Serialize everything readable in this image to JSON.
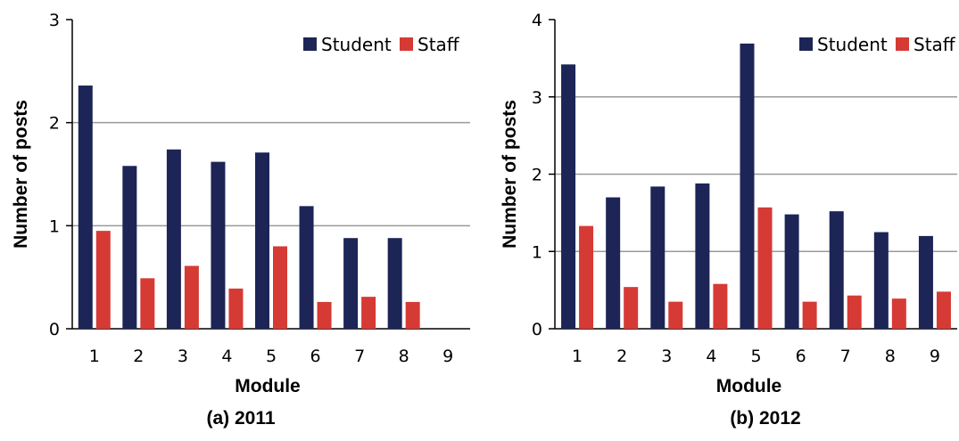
{
  "colors": {
    "student": "#1c2556",
    "staff": "#d63a35",
    "grid": "#9a9a9a",
    "axis": "#000000"
  },
  "chart_data": [
    {
      "type": "bar",
      "caption": "(a)  2011",
      "xlabel": "Module",
      "ylabel": "Number of posts",
      "ylim": [
        0,
        3
      ],
      "yticks": [
        0,
        1,
        2,
        3
      ],
      "categories": [
        "1",
        "2",
        "3",
        "4",
        "5",
        "6",
        "7",
        "8",
        "9"
      ],
      "legend_position": "top-right",
      "series": [
        {
          "name": "Student",
          "values": [
            2.36,
            1.58,
            1.74,
            1.62,
            1.71,
            1.19,
            0.88,
            0.88,
            0
          ]
        },
        {
          "name": "Staff",
          "values": [
            0.95,
            0.49,
            0.61,
            0.39,
            0.8,
            0.26,
            0.31,
            0.26,
            0
          ]
        }
      ]
    },
    {
      "type": "bar",
      "caption": "(b) 2012",
      "xlabel": "Module",
      "ylabel": "Number of posts",
      "ylim": [
        0,
        4
      ],
      "yticks": [
        0,
        1,
        2,
        3,
        4
      ],
      "categories": [
        "1",
        "2",
        "3",
        "4",
        "5",
        "6",
        "7",
        "8",
        "9"
      ],
      "legend_position": "top-right",
      "series": [
        {
          "name": "Student",
          "values": [
            3.42,
            1.7,
            1.84,
            1.88,
            3.69,
            1.48,
            1.52,
            1.25,
            1.2
          ]
        },
        {
          "name": "Staff",
          "values": [
            1.33,
            0.54,
            0.35,
            0.58,
            1.57,
            0.35,
            0.43,
            0.39,
            0.48
          ]
        }
      ]
    }
  ]
}
